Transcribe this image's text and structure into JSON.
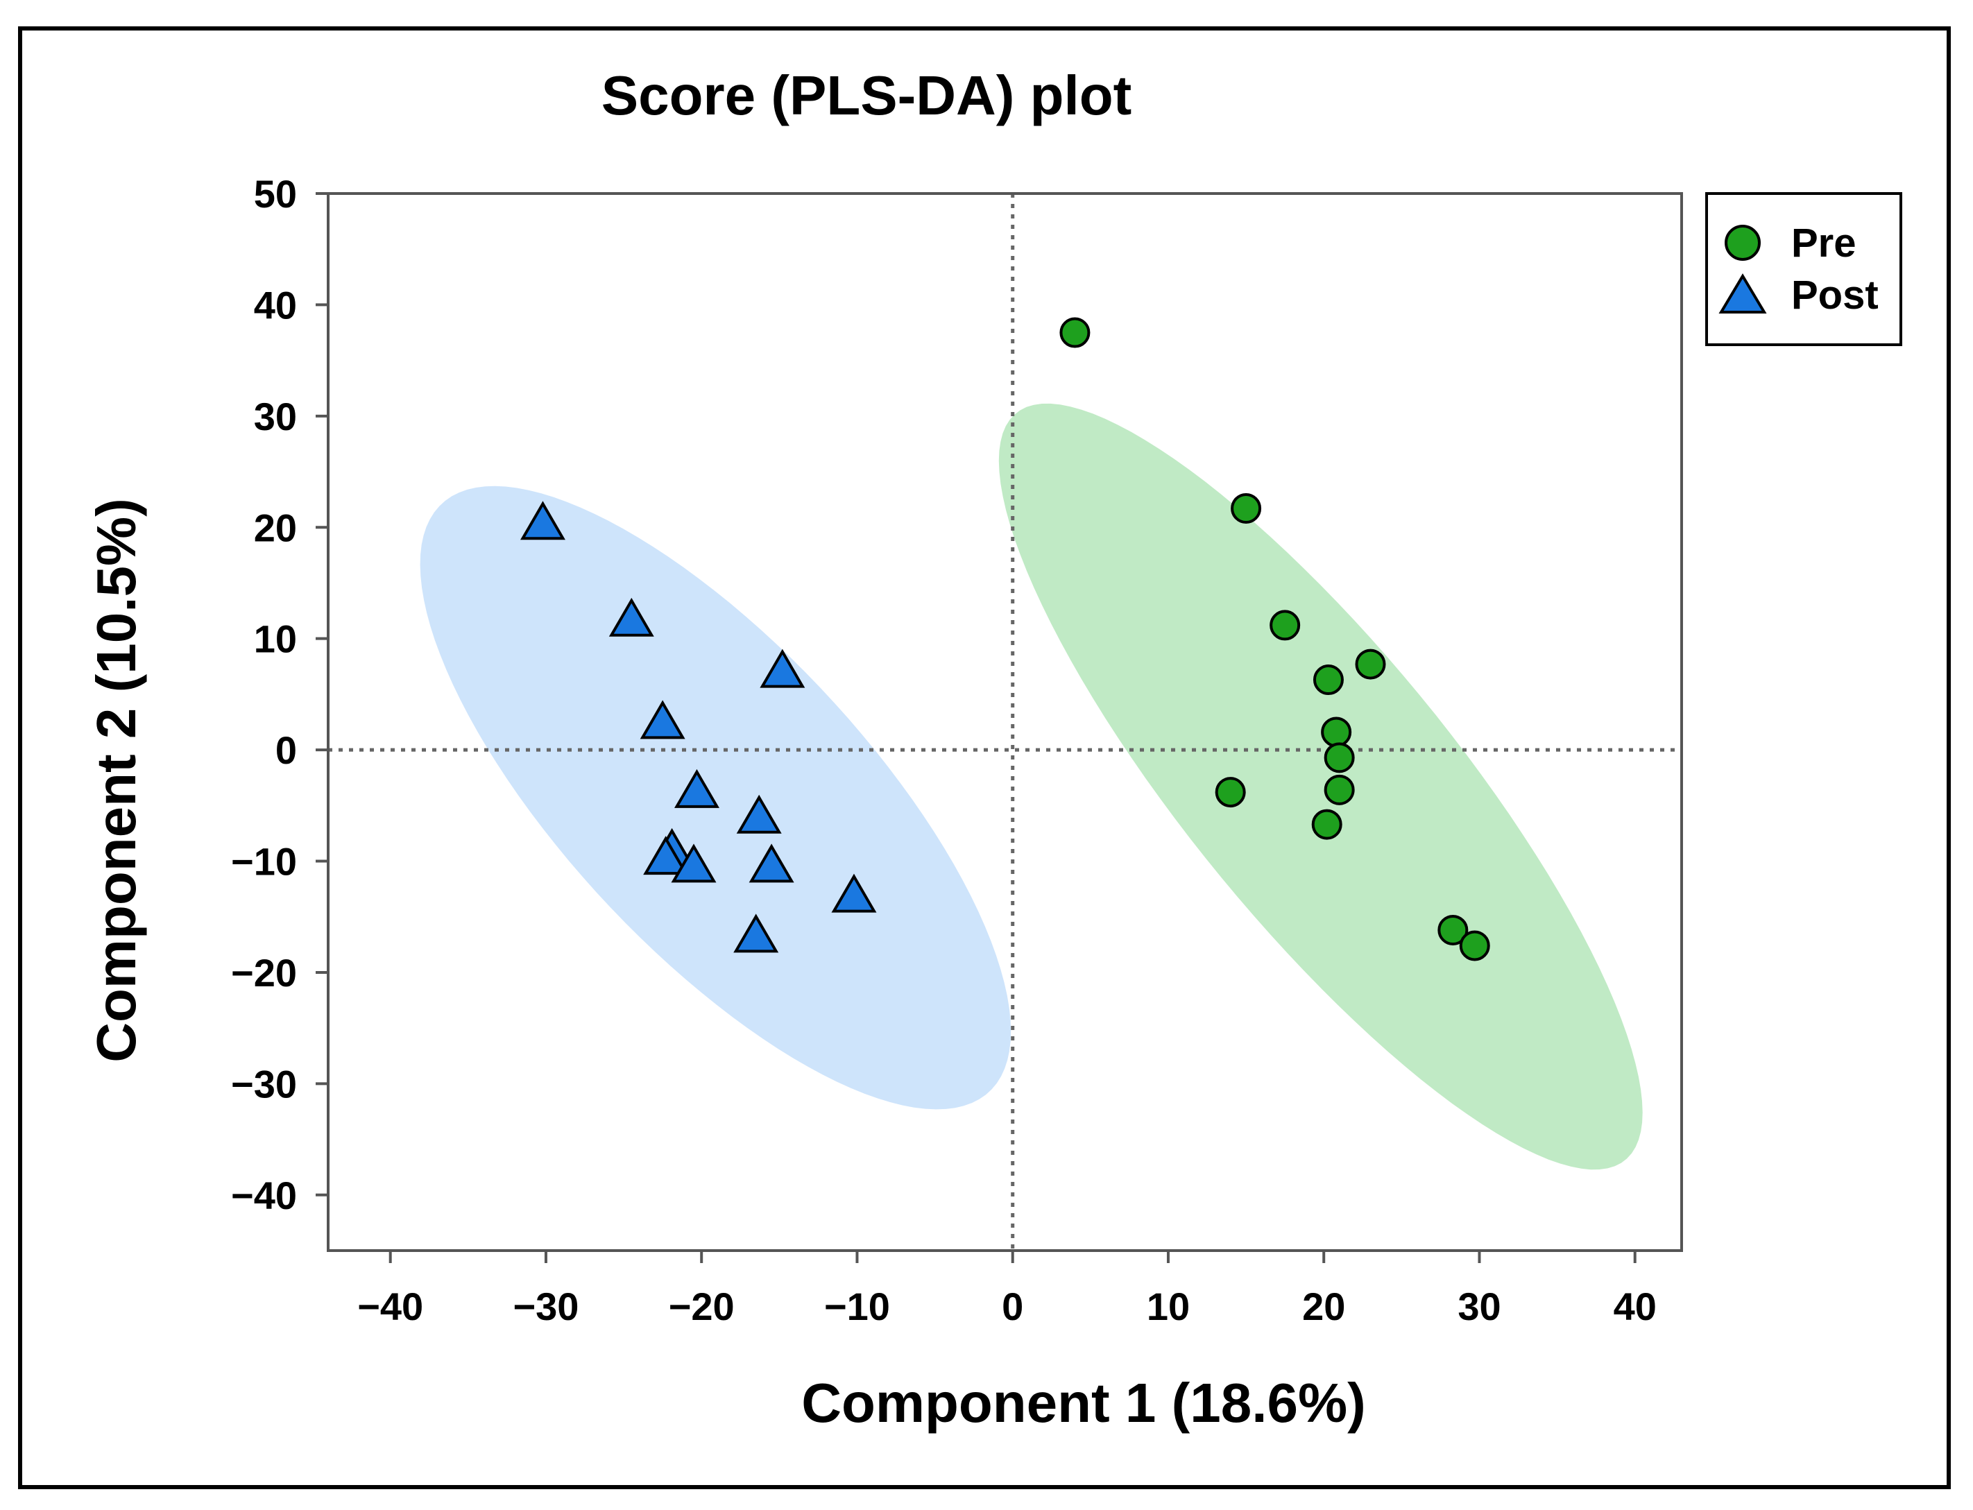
{
  "chart_data": {
    "type": "scatter",
    "title": "Score (PLS-DA) plot",
    "xlabel": "Component 1 (18.6%)",
    "ylabel": "Component 2 (10.5%)",
    "xlim": [
      -44,
      43
    ],
    "ylim": [
      -45,
      50
    ],
    "x_ticks": [
      -40,
      -30,
      -20,
      -10,
      0,
      10,
      20,
      30,
      40
    ],
    "y_ticks": [
      -40,
      -30,
      -20,
      -10,
      0,
      10,
      20,
      30,
      40,
      50
    ],
    "x_tick_labels": [
      "−40",
      "−30",
      "−20",
      "−10",
      "0",
      "10",
      "20",
      "30",
      "40"
    ],
    "y_tick_labels": [
      "−40",
      "−30",
      "−20",
      "−10",
      "0",
      "10",
      "20",
      "30",
      "40",
      "50"
    ],
    "reference_lines": {
      "x": 0,
      "y": 0,
      "style": "dotted"
    },
    "legend_position": "top-right, outside plot",
    "series": [
      {
        "name": "Pre",
        "marker": "circle",
        "color": "#1ea01e",
        "ellipse_color": "#b5e6bb",
        "ellipse": {
          "center": [
            19.8,
            -3.3
          ],
          "semi_major": 39.0,
          "semi_minor": 9.6,
          "angle_deg": -61
        },
        "points": [
          {
            "x": 4.0,
            "y": 37.5
          },
          {
            "x": 15.0,
            "y": 21.7
          },
          {
            "x": 17.5,
            "y": 11.2
          },
          {
            "x": 20.3,
            "y": 6.3
          },
          {
            "x": 23.0,
            "y": 7.7
          },
          {
            "x": 20.8,
            "y": 1.6
          },
          {
            "x": 21.0,
            "y": -0.7
          },
          {
            "x": 21.0,
            "y": -3.6
          },
          {
            "x": 14.0,
            "y": -3.8
          },
          {
            "x": 20.2,
            "y": -6.7
          },
          {
            "x": 28.3,
            "y": -16.2
          },
          {
            "x": 29.7,
            "y": -17.6
          }
        ]
      },
      {
        "name": "Post",
        "marker": "triangle",
        "color": "#1a78e0",
        "ellipse_color": "#c5dffa",
        "ellipse": {
          "center": [
            -19.1,
            -4.3
          ],
          "semi_major": 32.0,
          "semi_minor": 11.0,
          "angle_deg": -59
        },
        "points": [
          {
            "x": -30.2,
            "y": 20.5
          },
          {
            "x": -24.5,
            "y": 11.8
          },
          {
            "x": -22.5,
            "y": 2.6
          },
          {
            "x": -14.8,
            "y": 7.2
          },
          {
            "x": -20.3,
            "y": -3.6
          },
          {
            "x": -16.3,
            "y": -5.9
          },
          {
            "x": -21.9,
            "y": -8.9
          },
          {
            "x": -22.3,
            "y": -9.6
          },
          {
            "x": -20.5,
            "y": -10.3
          },
          {
            "x": -15.5,
            "y": -10.3
          },
          {
            "x": -10.2,
            "y": -13.0
          },
          {
            "x": -16.5,
            "y": -16.6
          }
        ]
      }
    ]
  }
}
